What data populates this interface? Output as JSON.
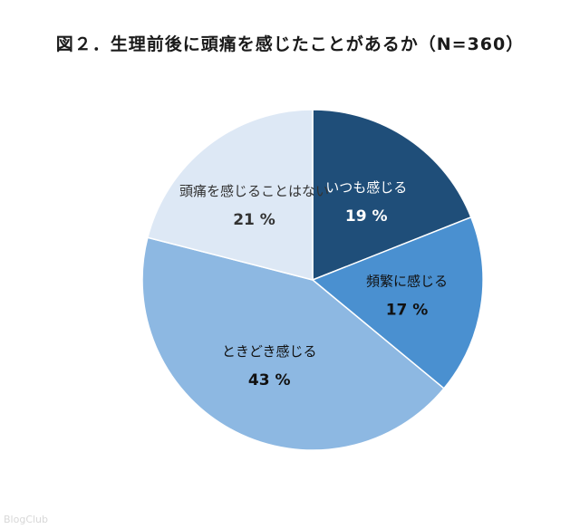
{
  "chart_data": {
    "type": "pie",
    "title": "図２．生理前後に頭痛を感じたことがあるか（N=360）",
    "slices": [
      {
        "label": "いつも感じる",
        "value": 19,
        "value_label": "19 %",
        "color": "#1f4e79",
        "text_color": "#ffffff"
      },
      {
        "label": "頻繁に感じる",
        "value": 17,
        "value_label": "17 %",
        "color": "#4a90d0",
        "text_color": "#111111"
      },
      {
        "label": "ときどき感じる",
        "value": 43,
        "value_label": "43 %",
        "color": "#8db8e2",
        "text_color": "#111111"
      },
      {
        "label": "頭痛を感じることはない",
        "value": 21,
        "value_label": "21 %",
        "color": "#dde8f5",
        "text_color": "#333333"
      }
    ]
  },
  "watermark": "BlogClub"
}
